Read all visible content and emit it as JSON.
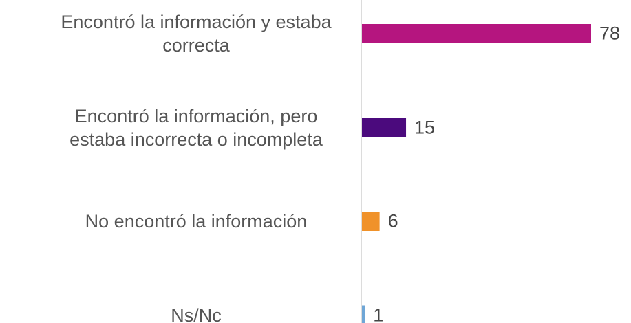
{
  "chart_data": {
    "type": "bar",
    "orientation": "horizontal",
    "categories": [
      "Encontró la información y estaba correcta",
      "Encontró la información, pero estaba incorrecta o incompleta",
      "No encontró la información",
      "Ns/Nc"
    ],
    "values": [
      78,
      15,
      6,
      1
    ],
    "colors": [
      "#b5157f",
      "#4b0a7d",
      "#f0922a",
      "#6fa6d6"
    ]
  }
}
